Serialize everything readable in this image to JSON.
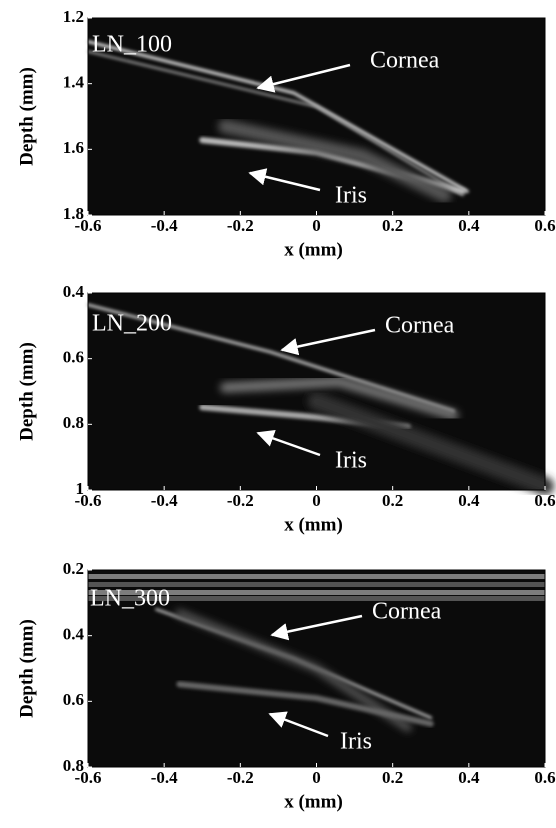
{
  "chart_data": [
    {
      "type": "image",
      "title": "LN_100",
      "xlabel": "x (mm)",
      "ylabel": "Depth (mm)",
      "xlim": [
        -0.6,
        0.6
      ],
      "xticks": [
        -0.6,
        -0.4,
        -0.2,
        0,
        0.2,
        0.4,
        0.6
      ],
      "ylim": [
        1.2,
        1.8
      ],
      "yticks": [
        1.2,
        1.4,
        1.6,
        1.8
      ],
      "y_inverted": true,
      "annotations": [
        "Cornea",
        "Iris"
      ]
    },
    {
      "type": "image",
      "title": "LN_200",
      "xlabel": "x (mm)",
      "ylabel": "Depth (mm)",
      "xlim": [
        -0.6,
        0.6
      ],
      "xticks": [
        -0.6,
        -0.4,
        -0.2,
        0,
        0.2,
        0.4,
        0.6
      ],
      "ylim": [
        0.4,
        1
      ],
      "yticks": [
        0.4,
        0.6,
        0.8,
        1
      ],
      "y_inverted": true,
      "annotations": [
        "Cornea",
        "Iris"
      ]
    },
    {
      "type": "image",
      "title": "LN_300",
      "xlabel": "x (mm)",
      "ylabel": "Depth (mm)",
      "xlim": [
        -0.6,
        0.6
      ],
      "xticks": [
        -0.6,
        -0.4,
        -0.2,
        0,
        0.2,
        0.4,
        0.6
      ],
      "ylim": [
        0.2,
        0.8
      ],
      "yticks": [
        0.2,
        0.4,
        0.6,
        0.8
      ],
      "y_inverted": true,
      "annotations": [
        "Cornea",
        "Iris"
      ]
    }
  ]
}
